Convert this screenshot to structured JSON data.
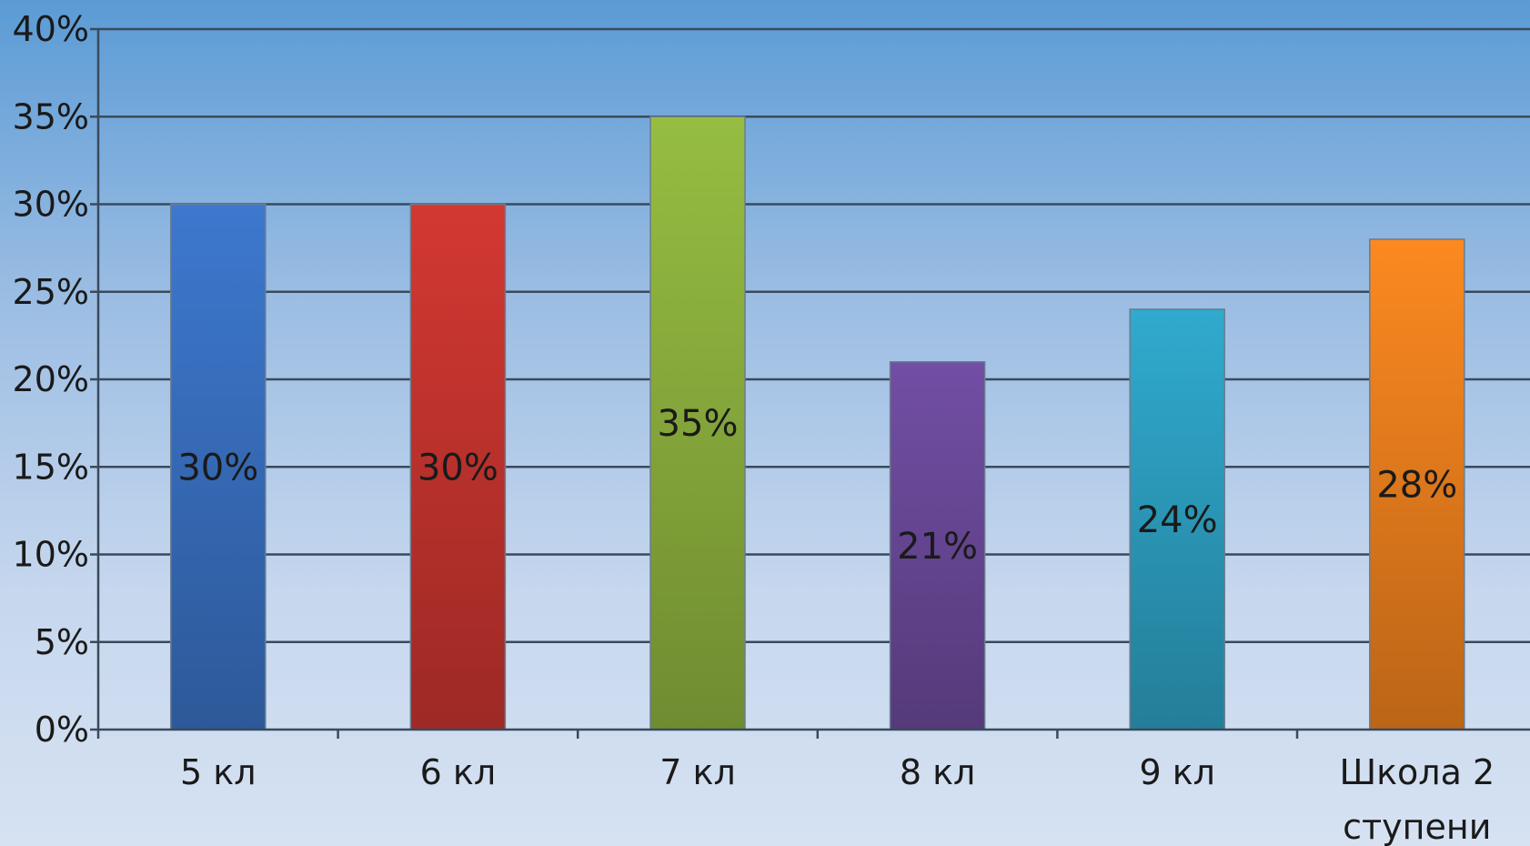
{
  "chart_data": {
    "type": "bar",
    "categories": [
      "5 кл",
      "6 кл",
      "7 кл",
      "8 кл",
      "9 кл",
      "Школа 2 ступени"
    ],
    "category_lines": [
      [
        "5 кл"
      ],
      [
        "6 кл"
      ],
      [
        "7 кл"
      ],
      [
        "8 кл"
      ],
      [
        "9 кл"
      ],
      [
        "Школа 2",
        "ступени"
      ]
    ],
    "values": [
      30,
      30,
      35,
      21,
      24,
      28
    ],
    "data_labels": [
      "30%",
      "30%",
      "35%",
      "21%",
      "24%",
      "28%"
    ],
    "colors": [
      "#3a72c4",
      "#c93530",
      "#8fb43f",
      "#6d4a9c",
      "#2ea2c4",
      "#f0821e"
    ],
    "ylim": [
      0,
      40
    ],
    "y_ticks": [
      "0%",
      "5%",
      "10%",
      "15%",
      "20%",
      "25%",
      "30%",
      "35%",
      "40%"
    ],
    "grid": true,
    "legend": "none",
    "title": "",
    "xlabel": "",
    "ylabel": ""
  }
}
